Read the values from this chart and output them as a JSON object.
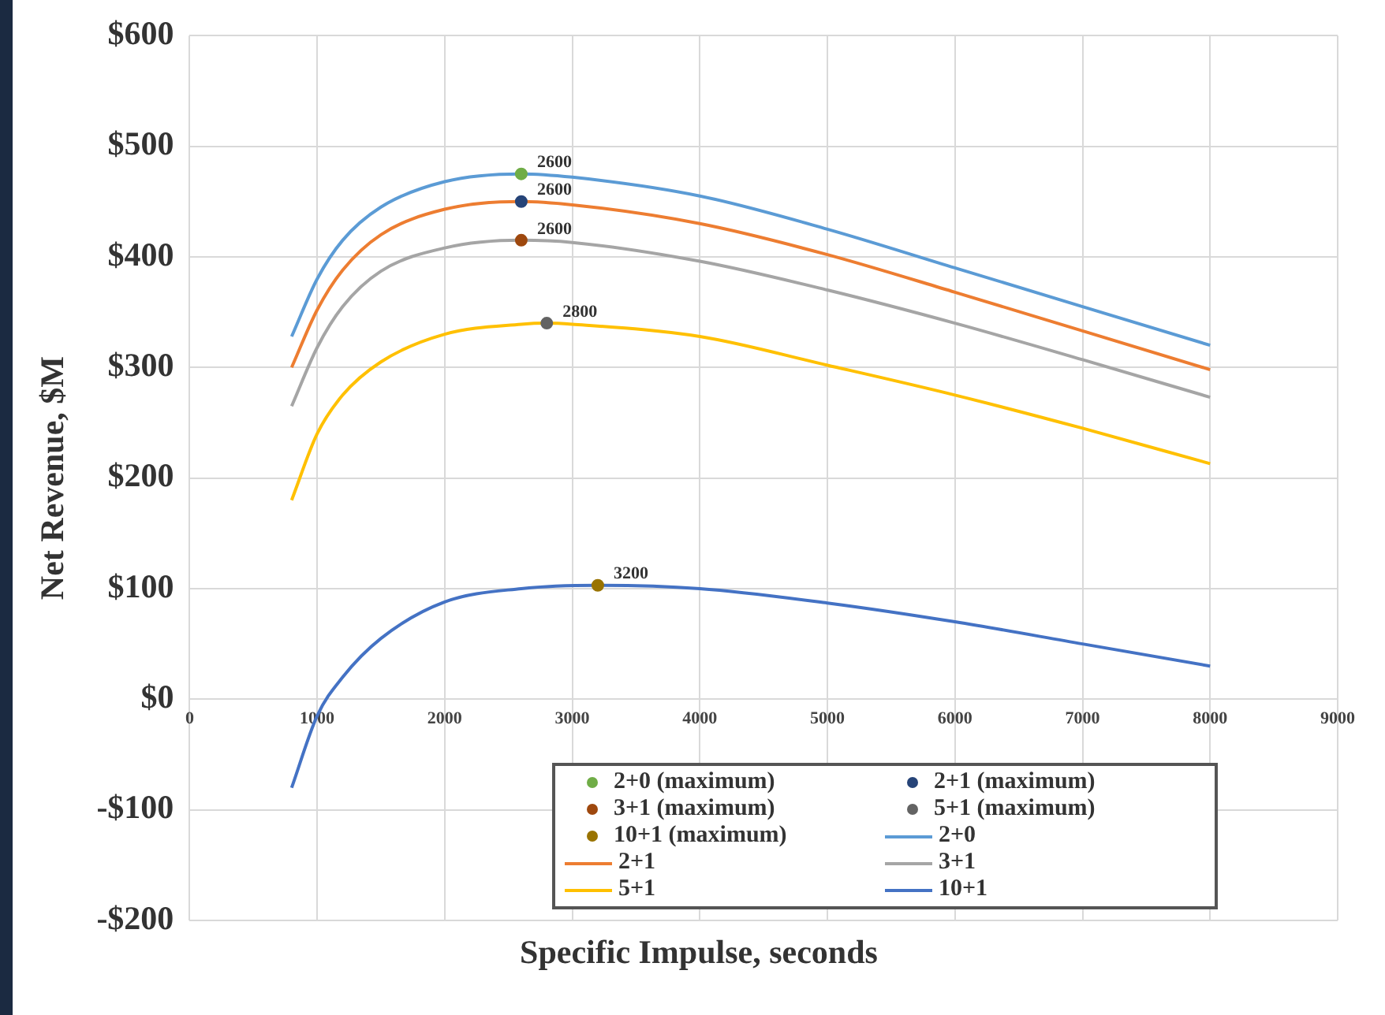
{
  "chart_data": {
    "type": "line",
    "xlabel": "Specific Impulse, seconds",
    "ylabel": "Net Revenue, $M",
    "xlim": [
      0,
      9000
    ],
    "xticks": [
      0,
      1000,
      2000,
      3000,
      4000,
      5000,
      6000,
      7000,
      8000,
      9000
    ],
    "ylim": [
      -200,
      600
    ],
    "yticks": [
      {
        "value": -200,
        "label": "-$200"
      },
      {
        "value": -100,
        "label": "-$100"
      },
      {
        "value": 0,
        "label": "$0"
      },
      {
        "value": 100,
        "label": "$100"
      },
      {
        "value": 200,
        "label": "$200"
      },
      {
        "value": 300,
        "label": "$300"
      },
      {
        "value": 400,
        "label": "$400"
      },
      {
        "value": 500,
        "label": "$500"
      },
      {
        "value": 600,
        "label": "$600"
      }
    ],
    "annotations": [
      {
        "text": "2600",
        "x": 2600,
        "y": 475
      },
      {
        "text": "2600",
        "x": 2600,
        "y": 450
      },
      {
        "text": "2600",
        "x": 2600,
        "y": 415
      },
      {
        "text": "2800",
        "x": 2800,
        "y": 340
      },
      {
        "text": "3200",
        "x": 3200,
        "y": 103
      }
    ],
    "grid": true,
    "legend": "bottom",
    "marker": "none",
    "line_style": "solid",
    "series": [
      {
        "name": "2+0 (maximum)",
        "type": "scatter",
        "marker": "circle",
        "color": "#70ad47",
        "x": [
          2600
        ],
        "values": [
          475
        ]
      },
      {
        "name": "2+1 (maximum)",
        "type": "scatter",
        "marker": "circle",
        "color": "#264478",
        "x": [
          2600
        ],
        "values": [
          450
        ]
      },
      {
        "name": "3+1 (maximum)",
        "type": "scatter",
        "marker": "circle",
        "color": "#9e480e",
        "x": [
          2600
        ],
        "values": [
          415
        ]
      },
      {
        "name": "5+1 (maximum)",
        "type": "scatter",
        "marker": "circle",
        "color": "#636363",
        "x": [
          2800
        ],
        "values": [
          340
        ]
      },
      {
        "name": "10+1 (maximum)",
        "type": "scatter",
        "marker": "circle",
        "color": "#997300",
        "x": [
          3200
        ],
        "values": [
          103
        ]
      },
      {
        "name": "2+0",
        "color": "#5b9bd5",
        "x": [
          800,
          1000,
          1200,
          1500,
          2000,
          2600,
          3000,
          4000,
          5000,
          6000,
          7000,
          8000
        ],
        "values": [
          328,
          380,
          415,
          445,
          468,
          475,
          472,
          455,
          425,
          390,
          355,
          320
        ]
      },
      {
        "name": "2+1",
        "color": "#ed7d31",
        "x": [
          800,
          1000,
          1200,
          1500,
          2000,
          2600,
          3000,
          4000,
          5000,
          6000,
          7000,
          8000
        ],
        "values": [
          300,
          352,
          388,
          420,
          443,
          450,
          447,
          430,
          402,
          368,
          333,
          298
        ]
      },
      {
        "name": "3+1",
        "color": "#a5a5a5",
        "x": [
          800,
          1000,
          1200,
          1500,
          2000,
          2600,
          3000,
          4000,
          5000,
          6000,
          7000,
          8000
        ],
        "values": [
          265,
          318,
          355,
          387,
          408,
          415,
          413,
          396,
          370,
          340,
          307,
          273
        ]
      },
      {
        "name": "5+1",
        "color": "#ffc000",
        "x": [
          800,
          1000,
          1200,
          1500,
          2000,
          2600,
          2800,
          3000,
          4000,
          5000,
          6000,
          7000,
          8000
        ],
        "values": [
          180,
          240,
          275,
          305,
          330,
          339,
          340,
          339,
          328,
          302,
          275,
          245,
          213
        ]
      },
      {
        "name": "10+1",
        "color": "#4472c4",
        "x": [
          800,
          1000,
          1200,
          1500,
          2000,
          2600,
          3200,
          4000,
          5000,
          6000,
          7000,
          8000
        ],
        "values": [
          -80,
          -15,
          20,
          55,
          88,
          100,
          103,
          100,
          87,
          70,
          50,
          30
        ]
      }
    ]
  }
}
